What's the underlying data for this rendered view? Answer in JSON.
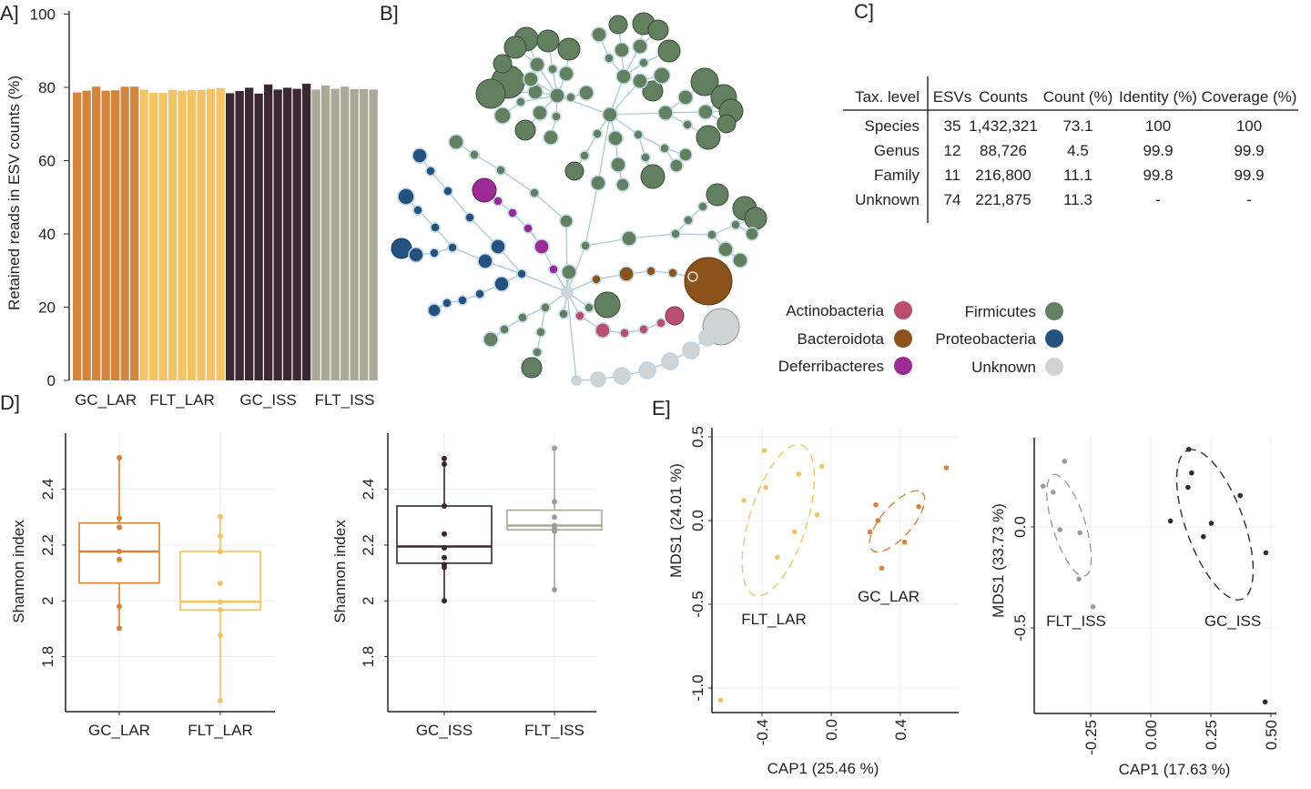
{
  "panel_labels": {
    "a": "A]",
    "b": "B]",
    "c": "C]",
    "d": "D]",
    "e": "E]"
  },
  "colors": {
    "GC_LAR": "#d4843c",
    "FLT_LAR": "#f2c466",
    "GC_ISS": "#3b2830",
    "FLT_ISS": "#a8aa97",
    "FLT_ISS_points": "#9c9c9c",
    "network_edge": "#a9c9d9"
  },
  "network": {
    "legend": [
      {
        "label": "Actinobacteria",
        "color": "#b94e6e"
      },
      {
        "label": "Bacteroidota",
        "color": "#8c521c"
      },
      {
        "label": "Deferribacteres",
        "color": "#9c2a94"
      },
      {
        "label": "Firmicutes",
        "color": "#627f5f"
      },
      {
        "label": "Proteobacteria",
        "color": "#24517f"
      },
      {
        "label": "Unknown",
        "color": "#d0d4d6"
      }
    ]
  },
  "table": {
    "headers": [
      "Tax. level",
      "ESVs",
      "Counts",
      "Count (%)",
      "Identity (%)",
      "Coverage (%)"
    ],
    "rows": [
      [
        "Species",
        "35",
        "1,432,321",
        "73.1",
        "100",
        "100"
      ],
      [
        "Genus",
        "12",
        "88,726",
        "4.5",
        "99.9",
        "99.9"
      ],
      [
        "Family",
        "11",
        "216,800",
        "11.1",
        "99.8",
        "99.9"
      ],
      [
        "Unknown",
        "74",
        "221,875",
        "11.3",
        "-",
        "-"
      ]
    ]
  },
  "chart_data": [
    {
      "id": "A",
      "type": "bar",
      "ylabel": "Retained reads in ESV counts (%)",
      "ylim": [
        0,
        100
      ],
      "yticks": [
        0,
        20,
        40,
        60,
        80,
        100
      ],
      "grid": false,
      "groups": [
        {
          "name": "GC_LAR",
          "values": [
            78.6,
            79.1,
            80.2,
            79.1,
            79.2,
            80.2,
            80.2
          ]
        },
        {
          "name": "FLT_LAR",
          "values": [
            79.4,
            78.5,
            78.5,
            79.3,
            79.1,
            79.3,
            79.3,
            79.6,
            79.8
          ]
        },
        {
          "name": "GC_ISS",
          "values": [
            78.4,
            79.0,
            79.9,
            78.3,
            80.8,
            79.4,
            79.9,
            79.6,
            81.0
          ]
        },
        {
          "name": "FLT_ISS",
          "values": [
            79.4,
            80.5,
            79.6,
            80.2,
            79.5,
            79.5,
            79.4
          ]
        }
      ]
    },
    {
      "id": "D1",
      "type": "box",
      "ylabel": "Shannon index",
      "yticks": [
        1.8,
        2.0,
        2.2,
        2.4
      ],
      "grid": true,
      "groups": [
        {
          "name": "GC_LAR",
          "q1": 2.064,
          "median": 2.177,
          "q3": 2.279,
          "points": [
            2.513,
            2.296,
            2.264,
            2.177,
            2.148,
            1.98,
            1.902
          ]
        },
        {
          "name": "FLT_LAR",
          "q1": 1.968,
          "median": 1.997,
          "q3": 2.177,
          "points": [
            2.302,
            2.233,
            2.177,
            2.063,
            1.996,
            1.968,
            1.877,
            1.643
          ]
        }
      ]
    },
    {
      "id": "D2",
      "type": "box",
      "ylabel": "Shannon index",
      "yticks": [
        1.8,
        2.0,
        2.2,
        2.4
      ],
      "grid": true,
      "groups": [
        {
          "name": "GC_ISS",
          "q1": 2.135,
          "median": 2.195,
          "q3": 2.34,
          "points": [
            2.51,
            2.49,
            2.34,
            2.24,
            2.19,
            2.155,
            2.13,
            2.12,
            2.0
          ]
        },
        {
          "name": "FLT_ISS",
          "q1": 2.255,
          "median": 2.27,
          "q3": 2.325,
          "points": [
            2.547,
            2.355,
            2.3,
            2.27,
            2.26,
            2.25,
            2.04
          ]
        }
      ]
    },
    {
      "id": "E1",
      "type": "scatter",
      "xlabel": "CAP1 (25.46 %)",
      "ylabel": "MDS1 (24.01 %)",
      "xticks": [
        -0.4,
        0.0,
        0.4
      ],
      "xtick_labels": [
        "-0.4",
        "0.0",
        "0.4"
      ],
      "yticks": [
        0.5,
        0.0,
        -0.5,
        -1.0
      ],
      "ytick_labels": [
        "0.5",
        "0.0",
        "-0.5",
        "-1.0"
      ],
      "grid": true,
      "series": [
        {
          "name": "FLT_LAR",
          "points": [
            [
              -0.386,
              0.418
            ],
            [
              -0.504,
              0.12
            ],
            [
              -0.378,
              0.197
            ],
            [
              -0.188,
              0.277
            ],
            [
              -0.055,
              0.324
            ],
            [
              -0.082,
              0.034
            ],
            [
              -0.212,
              -0.067
            ],
            [
              -0.311,
              -0.219
            ],
            [
              -0.639,
              -1.072
            ]
          ],
          "ellipse": {
            "center": [
              -0.306,
              0.002
            ],
            "major_tip": [
              -0.171,
              0.451
            ],
            "minor_tip": [
              -0.142,
              -0.025
            ]
          }
        },
        {
          "name": "GC_LAR",
          "points": [
            [
              0.258,
              0.094
            ],
            [
              0.506,
              0.083
            ],
            [
              0.27,
              0.0
            ],
            [
              0.224,
              -0.069
            ],
            [
              0.424,
              -0.129
            ],
            [
              0.292,
              -0.284
            ],
            [
              0.665,
              0.315
            ]
          ],
          "ellipse": {
            "center": [
              0.381,
              -0.005
            ],
            "major_tip": [
              0.525,
              0.167
            ],
            "minor_tip": [
              0.463,
              -0.043
            ]
          }
        }
      ]
    },
    {
      "id": "E2",
      "type": "scatter",
      "xlabel": "CAP1 (17.63 %)",
      "ylabel": "MDS1 (33.73 %)",
      "xticks": [
        -0.25,
        0.0,
        0.25,
        0.5
      ],
      "xtick_labels": [
        "-0.25",
        "0.00",
        "0.25",
        "0.50"
      ],
      "yticks": [
        0.0,
        -0.5
      ],
      "ytick_labels": [
        "0.0",
        "-0.5"
      ],
      "grid": true,
      "series": [
        {
          "name": "FLT_ISS",
          "points": [
            [
              -0.359,
              0.325
            ],
            [
              -0.448,
              0.202
            ],
            [
              -0.406,
              0.172
            ],
            [
              -0.378,
              -0.014
            ],
            [
              -0.295,
              -0.029
            ],
            [
              -0.299,
              -0.258
            ],
            [
              -0.24,
              -0.395
            ]
          ],
          "ellipse": {
            "center": [
              -0.34,
              0.008
            ],
            "major_tip": [
              -0.406,
              0.258
            ],
            "minor_tip": [
              -0.273,
              0.021
            ]
          }
        },
        {
          "name": "GC_ISS",
          "points": [
            [
              0.158,
              0.384
            ],
            [
              0.17,
              0.267
            ],
            [
              0.155,
              0.196
            ],
            [
              0.372,
              0.155
            ],
            [
              0.082,
              0.029
            ],
            [
              0.252,
              0.018
            ],
            [
              0.219,
              -0.048
            ],
            [
              0.479,
              -0.128
            ],
            [
              0.476,
              -0.866
            ]
          ],
          "ellipse": {
            "center": [
              0.267,
              0.011
            ],
            "major_tip": [
              0.155,
              0.38
            ],
            "minor_tip": [
              0.385,
              0.038
            ]
          }
        }
      ]
    }
  ]
}
